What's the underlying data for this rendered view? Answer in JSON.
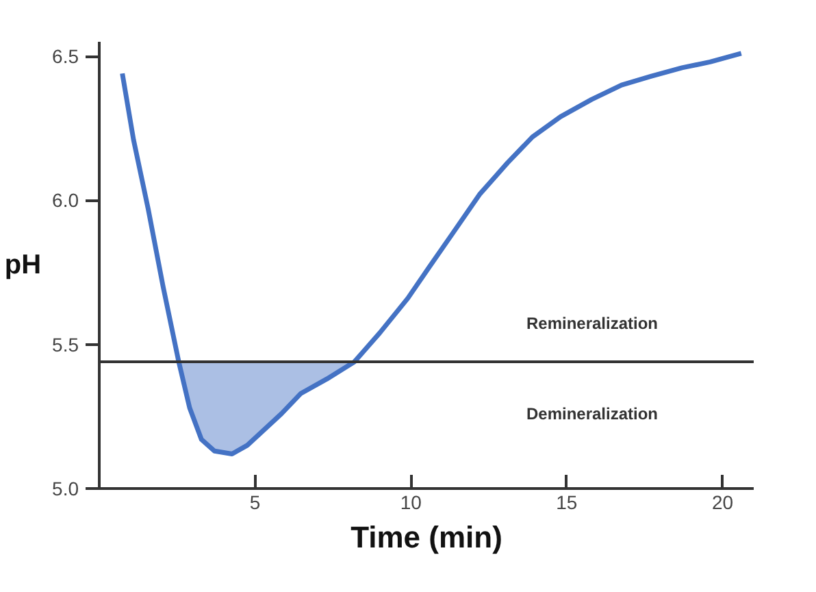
{
  "chart_data": {
    "type": "line",
    "xlabel": "Time (min)",
    "ylabel": "pH",
    "series": [
      {
        "color": "#4472c4",
        "x": [
          0.74,
          1.1,
          1.57,
          2.05,
          2.55,
          2.9,
          3.28,
          3.7,
          4.26,
          4.75,
          5.25,
          5.85,
          6.47,
          7.3,
          8.19,
          9.0,
          9.9,
          10.6,
          11.37,
          12.2,
          13.1,
          13.9,
          14.8,
          15.8,
          16.76,
          17.7,
          18.7,
          19.6,
          20.6
        ],
        "values": [
          6.44,
          6.21,
          5.97,
          5.7,
          5.44,
          5.28,
          5.17,
          5.13,
          5.12,
          5.15,
          5.2,
          5.26,
          5.33,
          5.38,
          5.44,
          5.54,
          5.66,
          5.77,
          5.89,
          6.02,
          6.13,
          6.22,
          6.29,
          6.35,
          6.4,
          6.43,
          6.46,
          6.48,
          6.51
        ],
        "lower": [
          null,
          null,
          null,
          null,
          5.44,
          5.28,
          5.17,
          5.13,
          5.12,
          5.15,
          5.2,
          5.26,
          5.33,
          5.38,
          5.44,
          null,
          null,
          null,
          null,
          null,
          null,
          null,
          null,
          null,
          null,
          null,
          null,
          null,
          null
        ],
        "upper": [
          null,
          null,
          null,
          null,
          5.44,
          5.44,
          5.44,
          5.44,
          5.44,
          5.44,
          5.44,
          5.44,
          5.44,
          5.44,
          5.44,
          null,
          null,
          null,
          null,
          null,
          null,
          null,
          null,
          null,
          null,
          null,
          null,
          null,
          null
        ]
      }
    ],
    "xlim": [
      0,
      21
    ],
    "ylim": [
      5.0,
      6.55
    ],
    "xticks": [
      5,
      10,
      15,
      20
    ],
    "yticks": [
      {
        "value": 5.0,
        "label": "5.0"
      },
      {
        "value": 5.5,
        "label": "5.5"
      },
      {
        "value": 6.0,
        "label": "6.0"
      },
      {
        "value": 6.5,
        "label": "6.5"
      }
    ],
    "ref_lines": [
      {
        "axis": "y",
        "value": 5.44,
        "color": "#333333"
      }
    ],
    "annotations": [
      "Remineralization",
      "Demineralization"
    ],
    "grid": false,
    "line_style": "solid",
    "marker": "none"
  }
}
